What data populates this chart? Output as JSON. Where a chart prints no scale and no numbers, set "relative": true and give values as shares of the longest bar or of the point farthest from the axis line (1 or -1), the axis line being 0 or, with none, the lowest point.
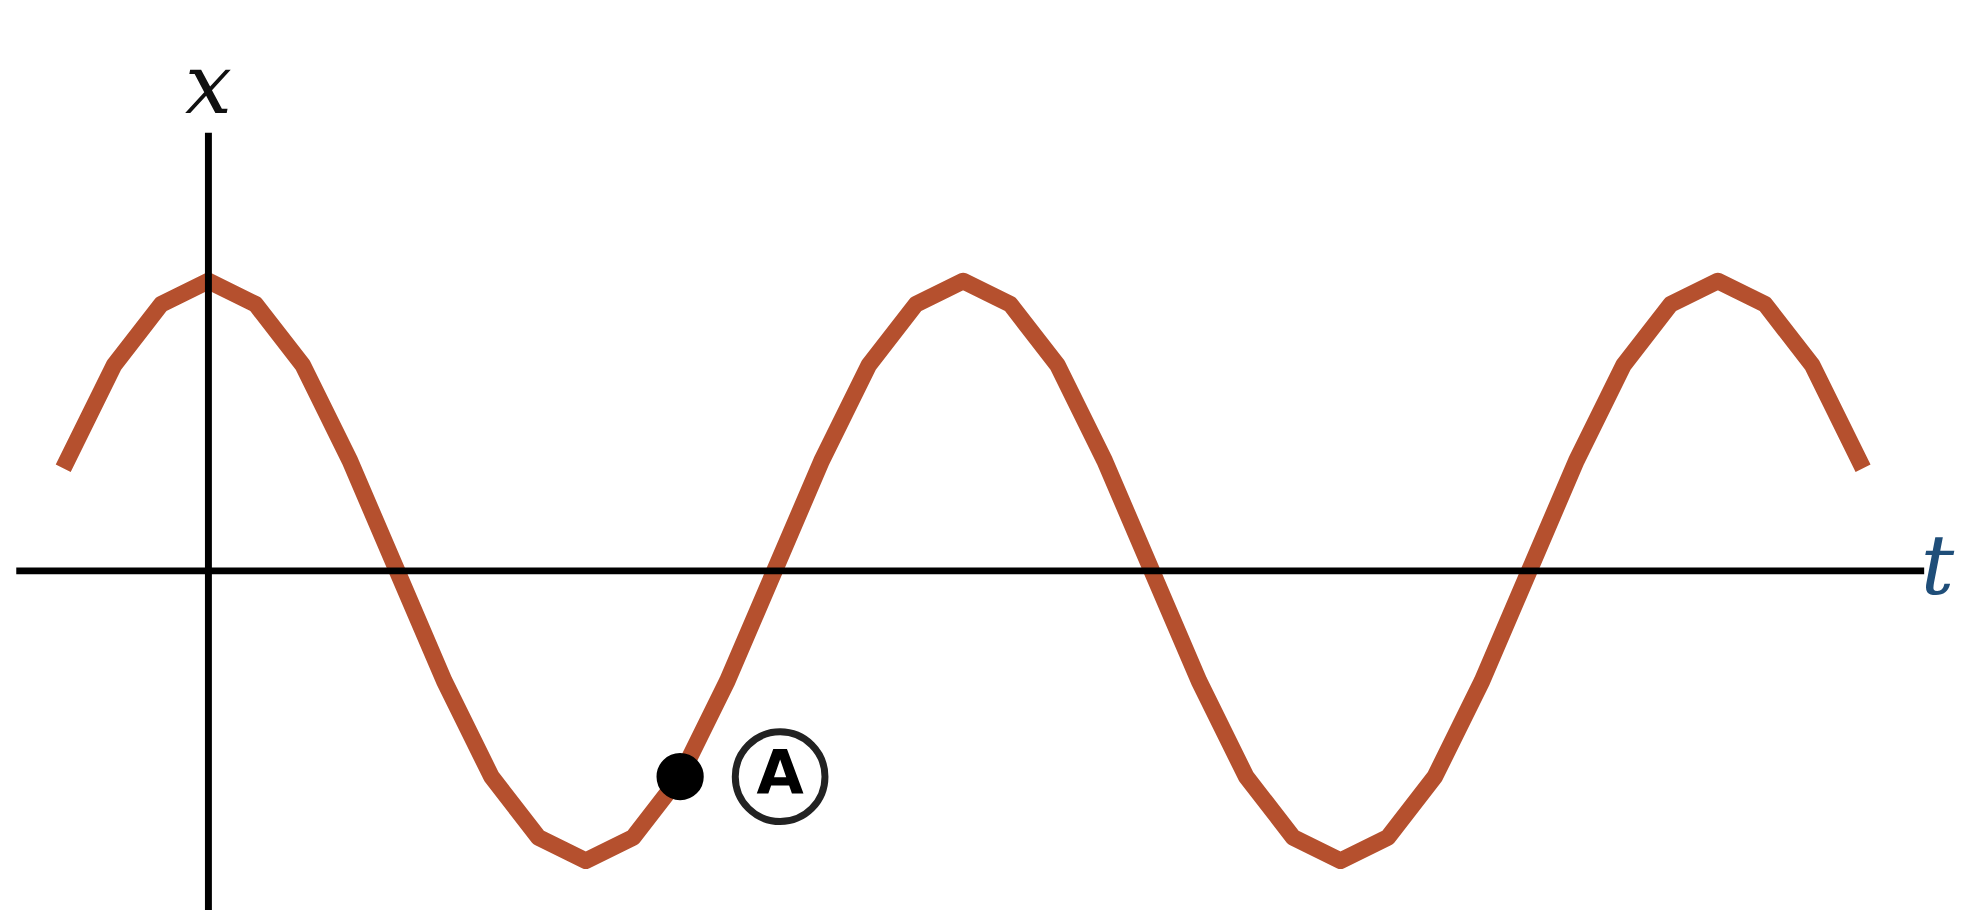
{
  "chart_data": {
    "type": "line",
    "relative": true,
    "xlabel": "t",
    "ylabel": "x",
    "color": "#b5502e",
    "categories": [
      null,
      null,
      null,
      null,
      null,
      null,
      null,
      null,
      null,
      null,
      null,
      null,
      null,
      null,
      null,
      null,
      null,
      null,
      null,
      null,
      null,
      null,
      null,
      null,
      null,
      null,
      null,
      null,
      null,
      null,
      null,
      null,
      null,
      null,
      null,
      null,
      null,
      null,
      null
    ],
    "values": [
      0.38,
      0.71,
      0.92,
      1,
      0.92,
      0.71,
      0.38,
      0,
      -0.38,
      -0.71,
      -0.92,
      -1,
      -0.92,
      -0.71,
      -0.38,
      0,
      0.38,
      0.71,
      0.92,
      1,
      0.92,
      0.71,
      0.38,
      0,
      -0.38,
      -0.71,
      -0.92,
      -1,
      -0.92,
      -0.71,
      -0.38,
      0,
      0.38,
      0.71,
      0.92,
      1,
      0.92,
      0.71,
      0.38
    ],
    "annotations": [
      "A"
    ]
  }
}
